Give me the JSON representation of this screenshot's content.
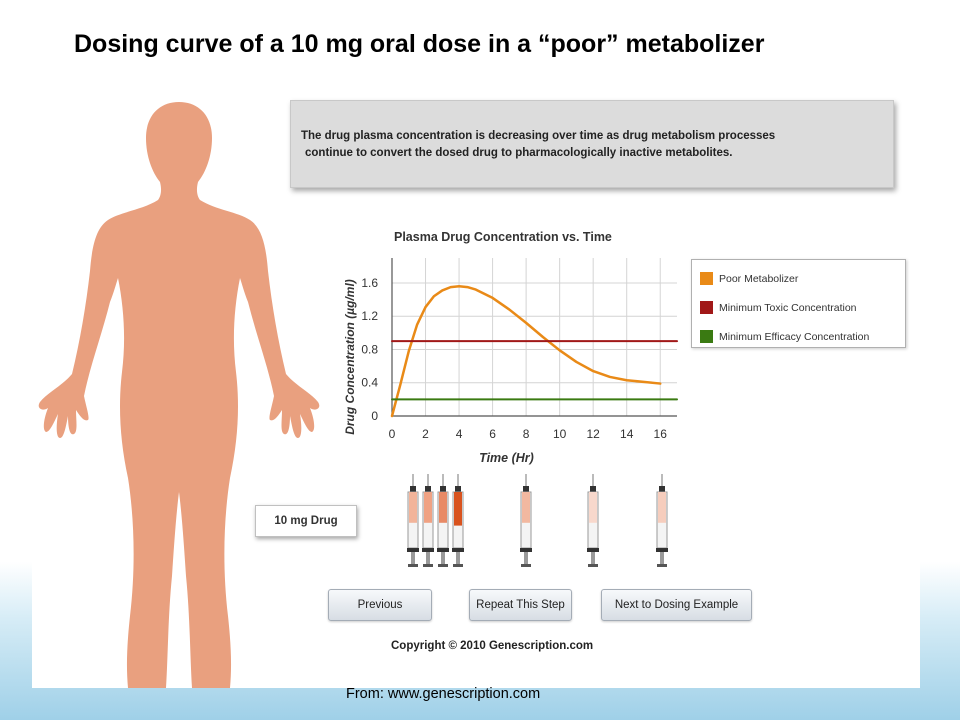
{
  "slide": {
    "title": "Dosing curve of a 10 mg oral dose in a “poor” metabolizer",
    "source": "From: www.genescription.com"
  },
  "message": {
    "line1": "The drug plasma concentration is decreasing over time as drug metabolism processes",
    "line2": "continue to convert the dosed drug to pharmacologically inactive metabolites."
  },
  "chart_data": {
    "type": "line",
    "title": "Plasma Drug Concentration vs. Time",
    "xlabel": "Time (Hr)",
    "ylabel": "Drug Concentration (µg/ml)",
    "xlim": [
      0,
      17
    ],
    "ylim": [
      0,
      1.9
    ],
    "xticks": [
      0,
      2,
      4,
      6,
      8,
      10,
      12,
      14,
      16
    ],
    "yticks": [
      0,
      0.4,
      0.8,
      1.2,
      1.6
    ],
    "grid": true,
    "legend_position": "right",
    "series": [
      {
        "name": "Poor Metabolizer",
        "color": "#e98a17",
        "x": [
          0,
          0.5,
          1,
          1.5,
          2,
          2.5,
          3,
          3.5,
          4,
          4.5,
          5,
          6,
          7,
          8,
          9,
          10,
          11,
          12,
          13,
          14,
          15,
          16
        ],
        "y": [
          0,
          0.38,
          0.78,
          1.1,
          1.31,
          1.44,
          1.51,
          1.55,
          1.56,
          1.55,
          1.52,
          1.42,
          1.28,
          1.12,
          0.95,
          0.79,
          0.65,
          0.54,
          0.47,
          0.43,
          0.41,
          0.39
        ]
      },
      {
        "name": "Minimum Toxic Concentration",
        "color": "#a11818",
        "x": [
          0,
          17
        ],
        "y": [
          0.9,
          0.9
        ]
      },
      {
        "name": "Minimum Efficacy Concentration",
        "color": "#3a7a12",
        "x": [
          0,
          17
        ],
        "y": [
          0.2,
          0.2
        ]
      }
    ]
  },
  "syringes": [
    {
      "fill_fraction": 0.55,
      "color": "#f2b49a"
    },
    {
      "fill_fraction": 0.55,
      "color": "#f0a283"
    },
    {
      "fill_fraction": 0.55,
      "color": "#e88a66"
    },
    {
      "fill_fraction": 0.6,
      "color": "#d9531e"
    },
    {
      "fill_fraction": 0.55,
      "color": "#f2b8a0"
    },
    {
      "fill_fraction": 0.55,
      "color": "#f8d8cc"
    },
    {
      "fill_fraction": 0.55,
      "color": "#f6cdbd"
    }
  ],
  "drug_label": "10 mg Drug",
  "buttons": {
    "previous": "Previous",
    "repeat": "Repeat This Step",
    "next": "Next to Dosing Example"
  },
  "copyright": "Copyright © 2010 Genescription.com",
  "colors": {
    "skin": "#e9a07f",
    "toxic": "#a11818",
    "efficacy": "#3a7a12",
    "poor_metabolizer": "#e98a17"
  }
}
